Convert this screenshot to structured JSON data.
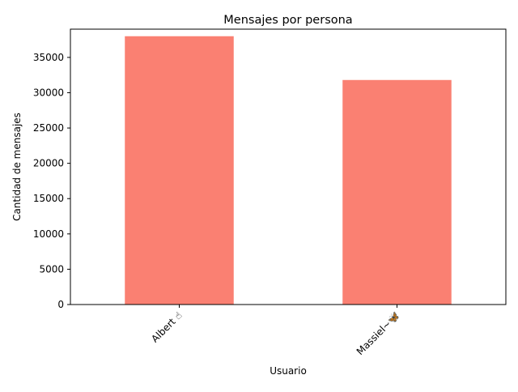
{
  "chart_data": {
    "type": "bar",
    "title": "Mensajes por persona",
    "xlabel": "Usuario",
    "ylabel": "Cantidad de mensajes",
    "categories": [
      "Albert ☝",
      "Massiel~🦋"
    ],
    "values": [
      38000,
      31800
    ],
    "ylim": [
      0,
      39000
    ],
    "yticks": [
      0,
      5000,
      10000,
      15000,
      20000,
      25000,
      30000,
      35000
    ],
    "bar_color": "#fa8072",
    "grid": false,
    "legend": "none",
    "x_tick_rotation": "45"
  }
}
